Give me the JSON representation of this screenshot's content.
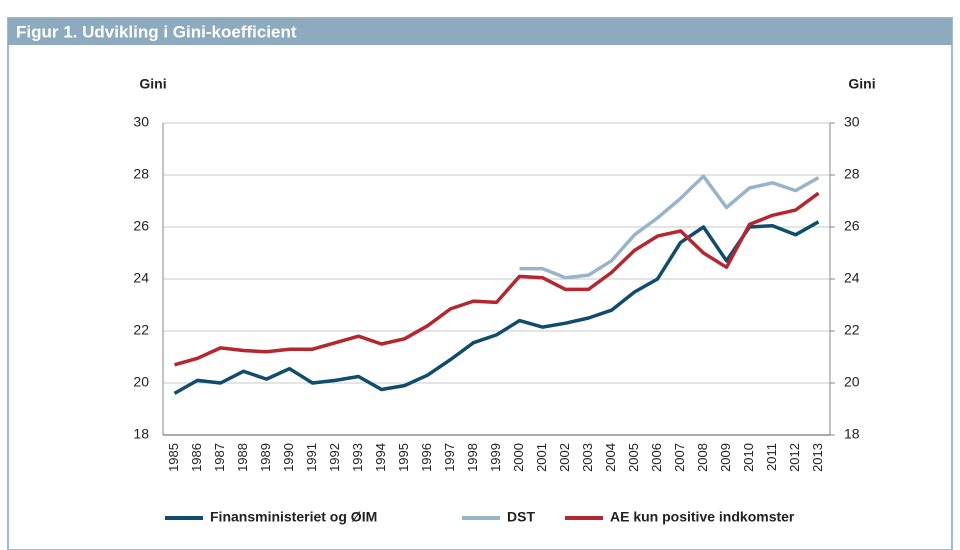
{
  "chart_data": {
    "type": "line",
    "title": "Figur 1. Udvikling i Gini-koefficient",
    "ylabel": "Gini",
    "y2label": "Gini",
    "categories": [
      "1985",
      "1986",
      "1987",
      "1988",
      "1989",
      "1990",
      "1991",
      "1992",
      "1993",
      "1994",
      "1995",
      "1996",
      "1997",
      "1998",
      "1999",
      "2000",
      "2001",
      "2002",
      "2003",
      "2004",
      "2005",
      "2006",
      "2007",
      "2008",
      "2009",
      "2010",
      "2011",
      "2012",
      "2013"
    ],
    "series": [
      {
        "name": "Finansministeriet og ØIM",
        "color": "#0f4c6e",
        "values": [
          19.6,
          20.1,
          20.0,
          20.45,
          20.15,
          20.55,
          20.0,
          20.1,
          20.25,
          19.75,
          19.9,
          20.3,
          20.9,
          21.55,
          21.85,
          22.4,
          22.15,
          22.3,
          22.5,
          22.8,
          23.5,
          24.0,
          25.4,
          26.0,
          24.7,
          26.0,
          26.05,
          25.7,
          26.2
        ]
      },
      {
        "name": "DST",
        "color": "#97b4cb",
        "values": [
          null,
          null,
          null,
          null,
          null,
          null,
          null,
          null,
          null,
          null,
          null,
          null,
          null,
          null,
          null,
          24.4,
          24.4,
          24.05,
          24.15,
          24.7,
          25.7,
          26.35,
          27.1,
          27.95,
          26.75,
          27.5,
          27.7,
          27.4,
          27.9
        ]
      },
      {
        "name": "AE kun positive indkomster",
        "color": "#b5262f",
        "values": [
          20.7,
          20.95,
          21.35,
          21.25,
          21.2,
          21.3,
          21.3,
          21.55,
          21.8,
          21.5,
          21.7,
          22.2,
          22.85,
          23.15,
          23.1,
          24.1,
          24.05,
          23.6,
          23.6,
          24.25,
          25.1,
          25.65,
          25.85,
          25.0,
          24.45,
          26.1,
          26.45,
          26.65,
          27.3
        ]
      }
    ],
    "ylim": [
      18,
      30
    ],
    "yticks": [
      18,
      20,
      22,
      24,
      26,
      28,
      30
    ],
    "y2lim": [
      18,
      30
    ],
    "y2ticks": [
      18,
      20,
      22,
      24,
      26,
      28,
      30
    ],
    "grid": true
  }
}
